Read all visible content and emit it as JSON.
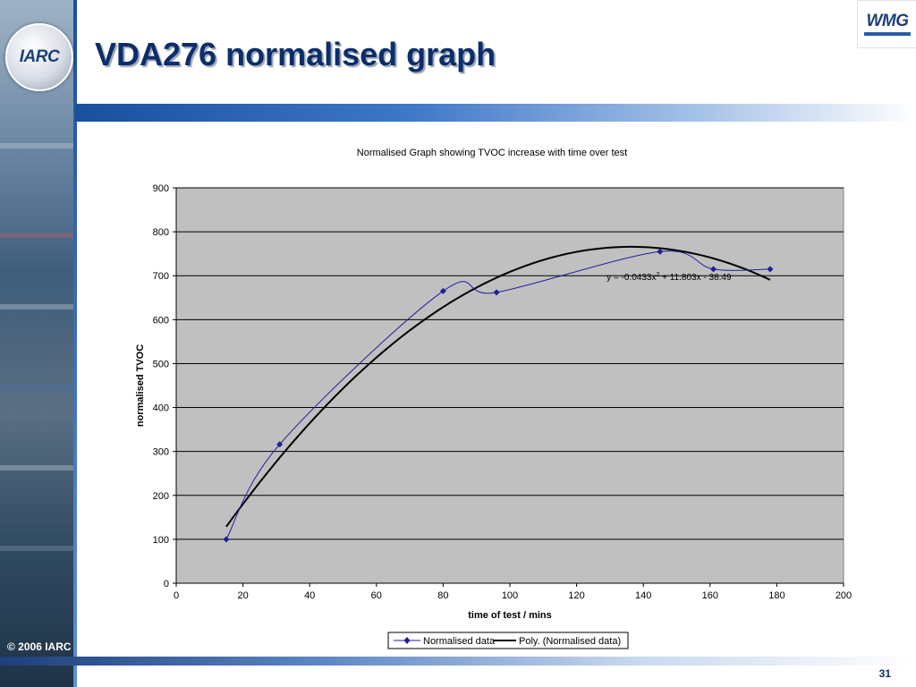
{
  "slide": {
    "title": "VDA276 normalised graph",
    "copyright": "© 2006 IARC",
    "page_number": "31",
    "logo_left": "IARC",
    "logo_right": "WMG"
  },
  "chart_data": {
    "type": "line",
    "title": "Normalised Graph showing TVOC increase with time over test",
    "xlabel": "time of test / mins",
    "ylabel": "normalised TVOC",
    "xlim": [
      0,
      200
    ],
    "ylim": [
      0,
      900
    ],
    "xticks": [
      0,
      20,
      40,
      60,
      80,
      100,
      120,
      140,
      160,
      180,
      200
    ],
    "yticks": [
      0,
      100,
      200,
      300,
      400,
      500,
      600,
      700,
      800,
      900
    ],
    "grid": "horizontal",
    "plot_background": "#c0c0c0",
    "legend_position": "bottom",
    "series": [
      {
        "name": "Normalised data",
        "color": "#1f1f9a",
        "marker": "diamond",
        "smooth": true,
        "x": [
          15,
          31,
          80,
          96,
          145,
          161,
          178
        ],
        "y": [
          100,
          316,
          665,
          662,
          755,
          715,
          715
        ]
      },
      {
        "name": "Poly. (Normalised data)",
        "color": "#000000",
        "kind": "trendline",
        "coefficients": [
          -0.0433,
          11.803,
          -38.49
        ],
        "x_range": [
          15,
          178
        ]
      }
    ],
    "annotation": {
      "text_prefix": "y = -0.0433x",
      "superscript": "2",
      "text_suffix": " + 11.803x - 38.49",
      "anchor_x": 129,
      "anchor_y": 690
    }
  }
}
